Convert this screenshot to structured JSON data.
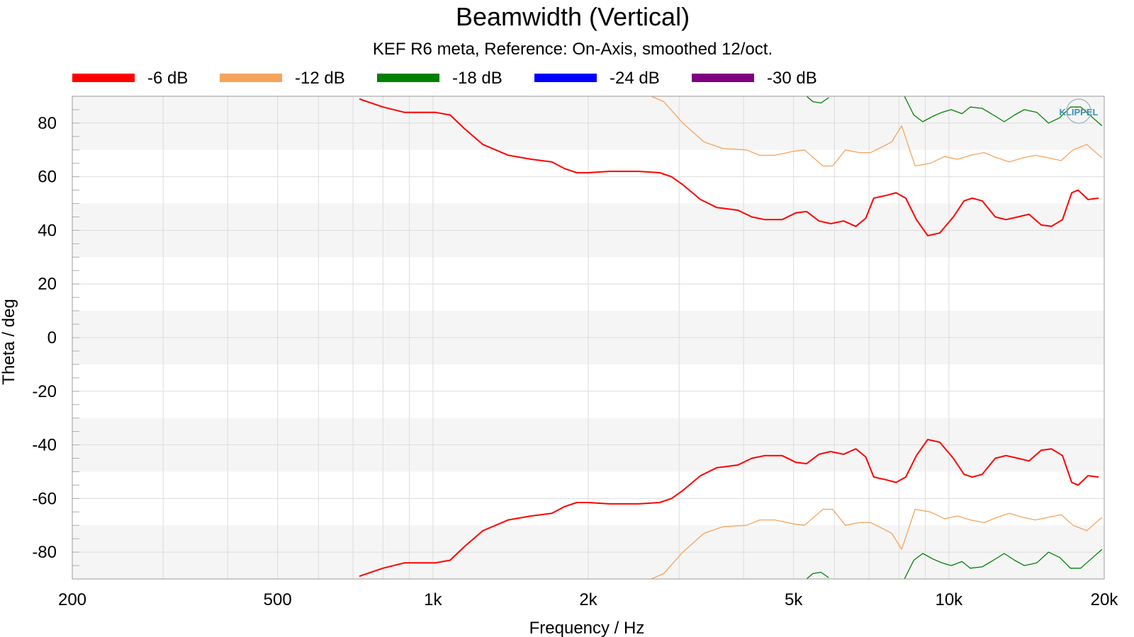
{
  "chart_data": {
    "type": "line",
    "title": "Beamwidth (Vertical)",
    "subtitle": "KEF R6 meta, Reference: On-Axis, smoothed 12/oct.",
    "xlabel": "Frequency / Hz",
    "ylabel": "Theta / deg",
    "xscale": "log",
    "xlim": [
      200,
      20000
    ],
    "ylim": [
      -90,
      90
    ],
    "x_ticks": [
      200,
      500,
      1000,
      2000,
      5000,
      10000,
      20000
    ],
    "x_tick_labels": [
      "200",
      "500",
      "1k",
      "2k",
      "5k",
      "10k",
      "20k"
    ],
    "y_ticks": [
      80,
      60,
      40,
      20,
      0,
      -20,
      -40,
      -60,
      -80
    ],
    "y_tick_labels": [
      "80",
      "60",
      "40",
      "20",
      "0",
      "-20",
      "-40",
      "-60",
      "-80"
    ],
    "grid": true,
    "legend_position": "top",
    "watermark": "KLIPPEL",
    "series": [
      {
        "name": "-6 dB",
        "color": "#ff0000",
        "x": [
          720,
          800,
          880,
          960,
          1010,
          1080,
          1150,
          1250,
          1400,
          1550,
          1700,
          1800,
          1900,
          2000,
          2200,
          2500,
          2750,
          2900,
          3050,
          3300,
          3550,
          3900,
          4150,
          4400,
          4750,
          5050,
          5300,
          5600,
          5900,
          6250,
          6600,
          6900,
          7150,
          7550,
          7900,
          8250,
          8650,
          9100,
          9600,
          10200,
          10700,
          11100,
          11600,
          12300,
          12900,
          13600,
          14300,
          15100,
          15800,
          16600,
          17300,
          17800,
          18600,
          19500
        ],
        "y": [
          89,
          86,
          84,
          84,
          84,
          83,
          78,
          72,
          68,
          66.5,
          65.5,
          63,
          61.5,
          61.5,
          62,
          62,
          61.5,
          60,
          57,
          51.5,
          48.5,
          47.5,
          45,
          44,
          44,
          46.5,
          47,
          43.5,
          42.5,
          43.5,
          41.5,
          44.5,
          52,
          53,
          54,
          52,
          44,
          38,
          39,
          45,
          51,
          52,
          51,
          45,
          44,
          45,
          46,
          42,
          41.5,
          44,
          54,
          55,
          51.5,
          52
        ]
      },
      {
        "name": "-6 dB",
        "color": "#ff0000",
        "x": [
          720,
          800,
          880,
          960,
          1010,
          1080,
          1150,
          1250,
          1400,
          1550,
          1700,
          1800,
          1900,
          2000,
          2200,
          2500,
          2750,
          2900,
          3050,
          3300,
          3550,
          3900,
          4150,
          4400,
          4750,
          5050,
          5300,
          5600,
          5900,
          6250,
          6600,
          6900,
          7150,
          7550,
          7900,
          8250,
          8650,
          9100,
          9600,
          10200,
          10700,
          11100,
          11600,
          12300,
          12900,
          13600,
          14300,
          15100,
          15800,
          16600,
          17300,
          17800,
          18600,
          19500
        ],
        "y": [
          -89,
          -86,
          -84,
          -84,
          -84,
          -83,
          -78,
          -72,
          -68,
          -66.5,
          -65.5,
          -63,
          -61.5,
          -61.5,
          -62,
          -62,
          -61.5,
          -60,
          -57,
          -51.5,
          -48.5,
          -47.5,
          -45,
          -44,
          -44,
          -46.5,
          -47,
          -43.5,
          -42.5,
          -43.5,
          -41.5,
          -44.5,
          -52,
          -53,
          -54,
          -52,
          -44,
          -38,
          -39,
          -45,
          -51,
          -52,
          -51,
          -45,
          -44,
          -45,
          -46,
          -42,
          -41.5,
          -44,
          -54,
          -55,
          -51.5,
          -52
        ]
      },
      {
        "name": "-12 dB",
        "color": "#f5a45c",
        "x": [
          2650,
          2800,
          3050,
          3350,
          3650,
          4050,
          4300,
          4600,
          5000,
          5250,
          5700,
          5950,
          6300,
          6700,
          7050,
          7400,
          7750,
          8100,
          8600,
          9200,
          9800,
          10400,
          11000,
          11700,
          12400,
          13100,
          13900,
          14700,
          15600,
          16500,
          17400,
          18500,
          19800
        ],
        "y": [
          90,
          88,
          80,
          73,
          70.5,
          70,
          68,
          68,
          69.5,
          70,
          64,
          64,
          70,
          69,
          69,
          71,
          73,
          79,
          64,
          65,
          67.5,
          66.5,
          68,
          69,
          67,
          65.5,
          67,
          68,
          67,
          66,
          70,
          72,
          67
        ]
      },
      {
        "name": "-12 dB",
        "color": "#f5a45c",
        "x": [
          2650,
          2800,
          3050,
          3350,
          3650,
          4050,
          4300,
          4600,
          5000,
          5250,
          5700,
          5950,
          6300,
          6700,
          7050,
          7400,
          7750,
          8100,
          8600,
          9200,
          9800,
          10400,
          11000,
          11700,
          12400,
          13100,
          13900,
          14700,
          15600,
          16500,
          17400,
          18500,
          19800
        ],
        "y": [
          -90,
          -88,
          -80,
          -73,
          -70.5,
          -70,
          -68,
          -68,
          -69.5,
          -70,
          -64,
          -64,
          -70,
          -69,
          -69,
          -71,
          -73,
          -79,
          -64,
          -65,
          -67.5,
          -66.5,
          -68,
          -69,
          -67,
          -65.5,
          -67,
          -68,
          -67,
          -66,
          -70,
          -72,
          -67
        ]
      },
      {
        "name": "-18 dB",
        "color": "#008000",
        "x": [
          5300,
          5450,
          5650,
          5850
        ],
        "y": [
          90,
          88,
          87.5,
          89.5
        ]
      },
      {
        "name": "-18 dB",
        "color": "#008000",
        "x": [
          5300,
          5450,
          5650,
          5850
        ],
        "y": [
          -90,
          -88,
          -87.5,
          -89.5
        ]
      },
      {
        "name": "-18 dB",
        "color": "#008000",
        "x": [
          8200,
          8550,
          8900,
          9300,
          9700,
          10100,
          10600,
          11000,
          11600,
          12200,
          12800,
          13400,
          14000,
          14800,
          15600,
          16400,
          17200,
          18000,
          19000,
          19800
        ],
        "y": [
          90,
          83,
          80.5,
          82.5,
          84,
          85,
          83.5,
          86,
          85.5,
          83,
          80.5,
          83,
          85,
          84,
          80,
          82,
          86,
          86,
          82,
          79
        ]
      },
      {
        "name": "-18 dB",
        "color": "#008000",
        "x": [
          8200,
          8550,
          8900,
          9300,
          9700,
          10100,
          10600,
          11000,
          11600,
          12200,
          12800,
          13400,
          14000,
          14800,
          15600,
          16400,
          17200,
          18000,
          19000,
          19800
        ],
        "y": [
          -90,
          -83,
          -80.5,
          -82.5,
          -84,
          -85,
          -83.5,
          -86,
          -85.5,
          -83,
          -80.5,
          -83,
          -85,
          -84,
          -80,
          -82,
          -86,
          -86,
          -82,
          -79
        ]
      },
      {
        "name": "-24 dB",
        "color": "#0000ff",
        "x": [],
        "y": []
      },
      {
        "name": "-30 dB",
        "color": "#800080",
        "x": [],
        "y": []
      }
    ],
    "legend": [
      {
        "name": "-6 dB",
        "color": "#ff0000"
      },
      {
        "name": "-12 dB",
        "color": "#f5a45c"
      },
      {
        "name": "-18 dB",
        "color": "#008000"
      },
      {
        "name": "-24 dB",
        "color": "#0000ff"
      },
      {
        "name": "-30 dB",
        "color": "#800080"
      }
    ]
  }
}
